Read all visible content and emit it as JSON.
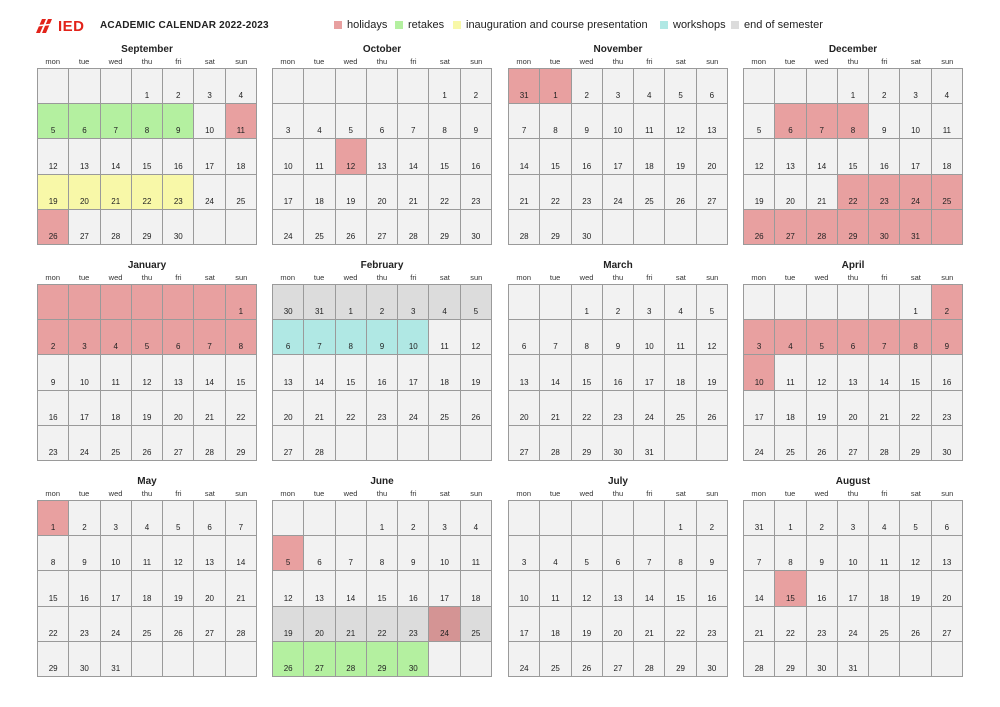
{
  "header": {
    "logo_text": "IED",
    "title": "ACADEMIC CALENDAR 2022-2023"
  },
  "legend": [
    {
      "key": "holiday",
      "label": "holidays",
      "color": "#e8a0a0",
      "x": 334
    },
    {
      "key": "retake",
      "label": "retakes",
      "color": "#b4f0a0",
      "x": 395
    },
    {
      "key": "inaug",
      "label": "inauguration and course presentation",
      "color": "#f8f8a8",
      "x": 453
    },
    {
      "key": "workshop",
      "label": "workshops",
      "color": "#b0e8e4",
      "x": 660
    },
    {
      "key": "end",
      "label": "end of semester",
      "color": "#dcdcdc",
      "x": 731
    }
  ],
  "weekdays": [
    "mon",
    "tue",
    "wed",
    "thu",
    "fri",
    "sat",
    "sun"
  ],
  "colors": {
    "holiday": "#e8a0a0",
    "retake": "#b4f0a0",
    "inaug": "#f8f8a8",
    "workshop": "#b0e8e4",
    "end": "#dcdcdc",
    "holiday_end": "#d49494",
    "empty": "#f2f2f2"
  },
  "months": [
    {
      "name": "September",
      "cells": [
        [
          "",
          "",
          "",
          "1",
          "2",
          "3",
          "4"
        ],
        [
          "5",
          "6",
          "7",
          "8",
          "9",
          "10",
          "11"
        ],
        [
          "12",
          "13",
          "14",
          "15",
          "16",
          "17",
          "18"
        ],
        [
          "19",
          "20",
          "21",
          "22",
          "23",
          "24",
          "25"
        ],
        [
          "26",
          "27",
          "28",
          "29",
          "30",
          "",
          ""
        ]
      ],
      "marks": [
        [
          "",
          "",
          "",
          "",
          "",
          "",
          ""
        ],
        [
          "retake",
          "retake",
          "retake",
          "retake",
          "retake",
          "",
          "holiday"
        ],
        [
          "",
          "",
          "",
          "",
          "",
          "",
          ""
        ],
        [
          "inaug",
          "inaug",
          "inaug",
          "inaug",
          "inaug",
          "",
          ""
        ],
        [
          "holiday",
          "",
          "",
          "",
          "",
          "",
          ""
        ]
      ]
    },
    {
      "name": "October",
      "cells": [
        [
          "",
          "",
          "",
          "",
          "",
          "1",
          "2"
        ],
        [
          "3",
          "4",
          "5",
          "6",
          "7",
          "8",
          "9"
        ],
        [
          "10",
          "11",
          "12",
          "13",
          "14",
          "15",
          "16"
        ],
        [
          "17",
          "18",
          "19",
          "20",
          "21",
          "22",
          "23"
        ],
        [
          "24",
          "25",
          "26",
          "27",
          "28",
          "29",
          "30"
        ]
      ],
      "marks": [
        [
          "",
          "",
          "",
          "",
          "",
          "",
          ""
        ],
        [
          "",
          "",
          "",
          "",
          "",
          "",
          ""
        ],
        [
          "",
          "",
          "holiday",
          "",
          "",
          "",
          ""
        ],
        [
          "",
          "",
          "",
          "",
          "",
          "",
          ""
        ],
        [
          "",
          "",
          "",
          "",
          "",
          "",
          ""
        ]
      ]
    },
    {
      "name": "November",
      "cells": [
        [
          "31",
          "1",
          "2",
          "3",
          "4",
          "5",
          "6"
        ],
        [
          "7",
          "8",
          "9",
          "10",
          "11",
          "12",
          "13"
        ],
        [
          "14",
          "15",
          "16",
          "17",
          "18",
          "19",
          "20"
        ],
        [
          "21",
          "22",
          "23",
          "24",
          "25",
          "26",
          "27"
        ],
        [
          "28",
          "29",
          "30",
          "",
          "",
          "",
          ""
        ]
      ],
      "marks": [
        [
          "holiday",
          "holiday",
          "",
          "",
          "",
          "",
          ""
        ],
        [
          "",
          "",
          "",
          "",
          "",
          "",
          ""
        ],
        [
          "",
          "",
          "",
          "",
          "",
          "",
          ""
        ],
        [
          "",
          "",
          "",
          "",
          "",
          "",
          ""
        ],
        [
          "",
          "",
          "",
          "",
          "",
          "",
          ""
        ]
      ]
    },
    {
      "name": "December",
      "cells": [
        [
          "",
          "",
          "",
          "1",
          "2",
          "3",
          "4"
        ],
        [
          "5",
          "6",
          "7",
          "8",
          "9",
          "10",
          "11"
        ],
        [
          "12",
          "13",
          "14",
          "15",
          "16",
          "17",
          "18"
        ],
        [
          "19",
          "20",
          "21",
          "22",
          "23",
          "24",
          "25"
        ],
        [
          "26",
          "27",
          "28",
          "29",
          "30",
          "31",
          ""
        ]
      ],
      "marks": [
        [
          "",
          "",
          "",
          "",
          "",
          "",
          ""
        ],
        [
          "",
          "holiday",
          "holiday",
          "holiday",
          "",
          "",
          ""
        ],
        [
          "",
          "",
          "",
          "",
          "",
          "",
          ""
        ],
        [
          "",
          "",
          "",
          "holiday",
          "holiday",
          "holiday",
          "holiday"
        ],
        [
          "holiday",
          "holiday",
          "holiday",
          "holiday",
          "holiday",
          "holiday",
          "holiday"
        ]
      ]
    },
    {
      "name": "January",
      "cells": [
        [
          "",
          "",
          "",
          "",
          "",
          "",
          "1"
        ],
        [
          "2",
          "3",
          "4",
          "5",
          "6",
          "7",
          "8"
        ],
        [
          "9",
          "10",
          "11",
          "12",
          "13",
          "14",
          "15"
        ],
        [
          "16",
          "17",
          "18",
          "19",
          "20",
          "21",
          "22"
        ],
        [
          "23",
          "24",
          "25",
          "26",
          "27",
          "28",
          "29"
        ]
      ],
      "marks": [
        [
          "holiday",
          "holiday",
          "holiday",
          "holiday",
          "holiday",
          "holiday",
          "holiday"
        ],
        [
          "holiday",
          "holiday",
          "holiday",
          "holiday",
          "holiday",
          "holiday",
          "holiday"
        ],
        [
          "",
          "",
          "",
          "",
          "",
          "",
          ""
        ],
        [
          "",
          "",
          "",
          "",
          "",
          "",
          ""
        ],
        [
          "",
          "",
          "",
          "",
          "",
          "",
          ""
        ]
      ]
    },
    {
      "name": "February",
      "cells": [
        [
          "30",
          "31",
          "1",
          "2",
          "3",
          "4",
          "5"
        ],
        [
          "6",
          "7",
          "8",
          "9",
          "10",
          "11",
          "12"
        ],
        [
          "13",
          "14",
          "15",
          "16",
          "17",
          "18",
          "19"
        ],
        [
          "20",
          "21",
          "22",
          "23",
          "24",
          "25",
          "26"
        ],
        [
          "27",
          "28",
          "",
          "",
          "",
          "",
          ""
        ]
      ],
      "marks": [
        [
          "end",
          "end",
          "end",
          "end",
          "end",
          "end",
          "end"
        ],
        [
          "workshop",
          "workshop",
          "workshop",
          "workshop",
          "workshop",
          "",
          ""
        ],
        [
          "",
          "",
          "",
          "",
          "",
          "",
          ""
        ],
        [
          "",
          "",
          "",
          "",
          "",
          "",
          ""
        ],
        [
          "",
          "",
          "",
          "",
          "",
          "",
          ""
        ]
      ]
    },
    {
      "name": "March",
      "cells": [
        [
          "",
          "",
          "1",
          "2",
          "3",
          "4",
          "5"
        ],
        [
          "6",
          "7",
          "8",
          "9",
          "10",
          "11",
          "12"
        ],
        [
          "13",
          "14",
          "15",
          "16",
          "17",
          "18",
          "19"
        ],
        [
          "20",
          "21",
          "22",
          "23",
          "24",
          "25",
          "26"
        ],
        [
          "27",
          "28",
          "29",
          "30",
          "31",
          "",
          ""
        ]
      ],
      "marks": [
        [
          "",
          "",
          "",
          "",
          "",
          "",
          ""
        ],
        [
          "",
          "",
          "",
          "",
          "",
          "",
          ""
        ],
        [
          "",
          "",
          "",
          "",
          "",
          "",
          ""
        ],
        [
          "",
          "",
          "",
          "",
          "",
          "",
          ""
        ],
        [
          "",
          "",
          "",
          "",
          "",
          "",
          ""
        ]
      ]
    },
    {
      "name": "April",
      "cells": [
        [
          "",
          "",
          "",
          "",
          "",
          "1",
          "2"
        ],
        [
          "3",
          "4",
          "5",
          "6",
          "7",
          "8",
          "9"
        ],
        [
          "10",
          "11",
          "12",
          "13",
          "14",
          "15",
          "16"
        ],
        [
          "17",
          "18",
          "19",
          "20",
          "21",
          "22",
          "23"
        ],
        [
          "24",
          "25",
          "26",
          "27",
          "28",
          "29",
          "30"
        ]
      ],
      "marks": [
        [
          "",
          "",
          "",
          "",
          "",
          "",
          "holiday"
        ],
        [
          "holiday",
          "holiday",
          "holiday",
          "holiday",
          "holiday",
          "holiday",
          "holiday"
        ],
        [
          "holiday",
          "",
          "",
          "",
          "",
          "",
          ""
        ],
        [
          "",
          "",
          "",
          "",
          "",
          "",
          ""
        ],
        [
          "",
          "",
          "",
          "",
          "",
          "",
          ""
        ]
      ]
    },
    {
      "name": "May",
      "cells": [
        [
          "1",
          "2",
          "3",
          "4",
          "5",
          "6",
          "7"
        ],
        [
          "8",
          "9",
          "10",
          "11",
          "12",
          "13",
          "14"
        ],
        [
          "15",
          "16",
          "17",
          "18",
          "19",
          "20",
          "21"
        ],
        [
          "22",
          "23",
          "24",
          "25",
          "26",
          "27",
          "28"
        ],
        [
          "29",
          "30",
          "31",
          "",
          "",
          "",
          ""
        ]
      ],
      "marks": [
        [
          "holiday",
          "",
          "",
          "",
          "",
          "",
          ""
        ],
        [
          "",
          "",
          "",
          "",
          "",
          "",
          ""
        ],
        [
          "",
          "",
          "",
          "",
          "",
          "",
          ""
        ],
        [
          "",
          "",
          "",
          "",
          "",
          "",
          ""
        ],
        [
          "",
          "",
          "",
          "",
          "",
          "",
          ""
        ]
      ]
    },
    {
      "name": "June",
      "cells": [
        [
          "",
          "",
          "",
          "1",
          "2",
          "3",
          "4"
        ],
        [
          "5",
          "6",
          "7",
          "8",
          "9",
          "10",
          "11"
        ],
        [
          "12",
          "13",
          "14",
          "15",
          "16",
          "17",
          "18"
        ],
        [
          "19",
          "20",
          "21",
          "22",
          "23",
          "24",
          "25"
        ],
        [
          "26",
          "27",
          "28",
          "29",
          "30",
          "",
          ""
        ]
      ],
      "marks": [
        [
          "",
          "",
          "",
          "",
          "",
          "",
          ""
        ],
        [
          "holiday",
          "",
          "",
          "",
          "",
          "",
          ""
        ],
        [
          "",
          "",
          "",
          "",
          "",
          "",
          ""
        ],
        [
          "end",
          "end",
          "end",
          "end",
          "end",
          "holiday_end",
          "end"
        ],
        [
          "retake",
          "retake",
          "retake",
          "retake",
          "retake",
          "",
          ""
        ]
      ]
    },
    {
      "name": "July",
      "cells": [
        [
          "",
          "",
          "",
          "",
          "",
          "1",
          "2"
        ],
        [
          "3",
          "4",
          "5",
          "6",
          "7",
          "8",
          "9"
        ],
        [
          "10",
          "11",
          "12",
          "13",
          "14",
          "15",
          "16"
        ],
        [
          "17",
          "18",
          "19",
          "20",
          "21",
          "22",
          "23"
        ],
        [
          "24",
          "25",
          "26",
          "27",
          "28",
          "29",
          "30"
        ]
      ],
      "marks": [
        [
          "",
          "",
          "",
          "",
          "",
          "",
          ""
        ],
        [
          "",
          "",
          "",
          "",
          "",
          "",
          ""
        ],
        [
          "",
          "",
          "",
          "",
          "",
          "",
          ""
        ],
        [
          "",
          "",
          "",
          "",
          "",
          "",
          ""
        ],
        [
          "",
          "",
          "",
          "",
          "",
          "",
          ""
        ]
      ]
    },
    {
      "name": "August",
      "cells": [
        [
          "31",
          "1",
          "2",
          "3",
          "4",
          "5",
          "6"
        ],
        [
          "7",
          "8",
          "9",
          "10",
          "11",
          "12",
          "13"
        ],
        [
          "14",
          "15",
          "16",
          "17",
          "18",
          "19",
          "20"
        ],
        [
          "21",
          "22",
          "23",
          "24",
          "25",
          "26",
          "27"
        ],
        [
          "28",
          "29",
          "30",
          "31",
          "",
          "",
          ""
        ]
      ],
      "marks": [
        [
          "",
          "",
          "",
          "",
          "",
          "",
          ""
        ],
        [
          "",
          "",
          "",
          "",
          "",
          "",
          ""
        ],
        [
          "",
          "holiday",
          "",
          "",
          "",
          "",
          ""
        ],
        [
          "",
          "",
          "",
          "",
          "",
          "",
          ""
        ],
        [
          "",
          "",
          "",
          "",
          "",
          "",
          ""
        ]
      ]
    }
  ]
}
